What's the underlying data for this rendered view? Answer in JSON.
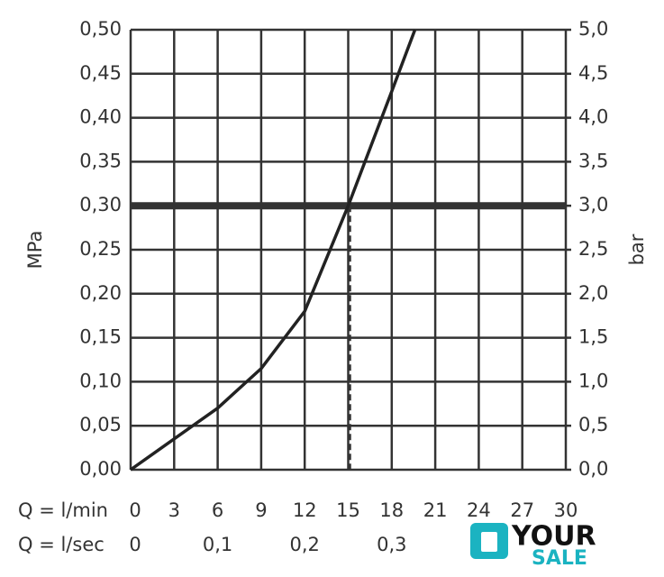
{
  "chart_data": {
    "type": "line",
    "x": [
      0,
      3,
      6,
      9,
      12,
      15,
      18,
      19.6
    ],
    "values": [
      0,
      0.035,
      0.07,
      0.115,
      0.18,
      0.3,
      0.43,
      0.5
    ],
    "color": "#222222",
    "xlim": [
      0,
      30
    ],
    "xticks": [
      0,
      3,
      6,
      9,
      12,
      15,
      18,
      21,
      24,
      27,
      30
    ],
    "xlabel": "Q = l/min",
    "x2lim": [
      0,
      0.5
    ],
    "x2ticks": [
      0,
      {
        "value": 0.1,
        "label": "0,1"
      },
      {
        "value": 0.2,
        "label": "0,2"
      },
      {
        "value": 0.3,
        "label": "0,3"
      }
    ],
    "x2label": "Q = l/sec",
    "ylim": [
      0,
      0.5
    ],
    "yticks": [
      {
        "value": 0,
        "label": "0,00"
      },
      {
        "value": 0.05,
        "label": "0,05"
      },
      {
        "value": 0.1,
        "label": "0,10"
      },
      {
        "value": 0.15,
        "label": "0,15"
      },
      {
        "value": 0.2,
        "label": "0,20"
      },
      {
        "value": 0.25,
        "label": "0,25"
      },
      {
        "value": 0.3,
        "label": "0,30"
      },
      {
        "value": 0.35,
        "label": "0,35"
      },
      {
        "value": 0.4,
        "label": "0,40"
      },
      {
        "value": 0.45,
        "label": "0,45"
      },
      {
        "value": 0.5,
        "label": "0,50"
      }
    ],
    "ylabel": "MPa",
    "y2lim": [
      0,
      5
    ],
    "y2ticks": [
      {
        "value": 0,
        "label": "0,0"
      },
      {
        "value": 0.5,
        "label": "0,5"
      },
      {
        "value": 1,
        "label": "1,0"
      },
      {
        "value": 1.5,
        "label": "1,5"
      },
      {
        "value": 2,
        "label": "2,0"
      },
      {
        "value": 2.5,
        "label": "2,5"
      },
      {
        "value": 3,
        "label": "3,0"
      },
      {
        "value": 3.5,
        "label": "3,5"
      },
      {
        "value": 4,
        "label": "4,0"
      },
      {
        "value": 4.5,
        "label": "4,5"
      },
      {
        "value": 5,
        "label": "5,0"
      }
    ],
    "y2label": "bar",
    "grid": true,
    "reference_line": {
      "y": 0.3,
      "x": 15
    },
    "watermark": [
      "YOUR",
      "SALE"
    ]
  }
}
